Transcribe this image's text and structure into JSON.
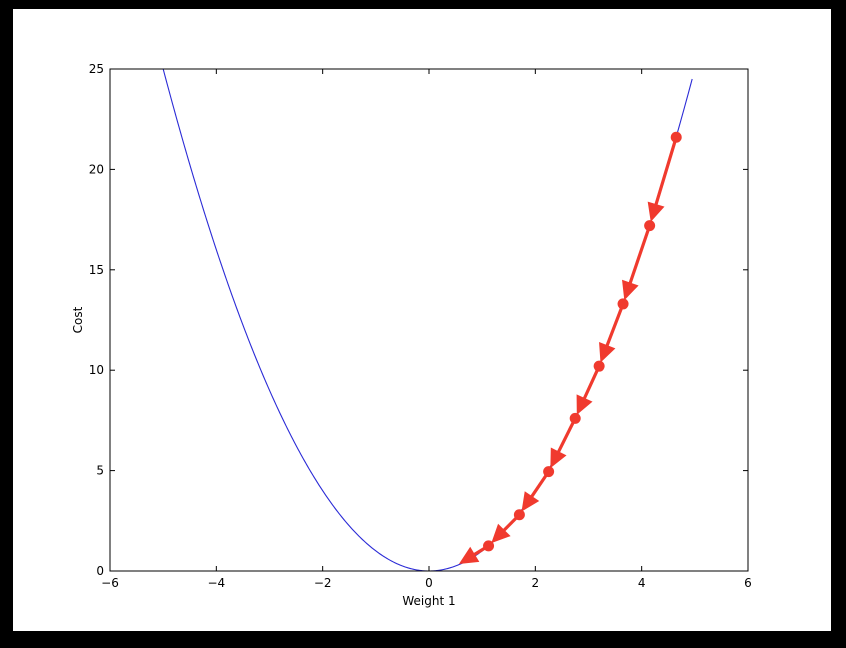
{
  "chart_data": {
    "type": "line",
    "title": "",
    "xlabel": "Weight 1",
    "ylabel": "Cost",
    "xlim": [
      -6,
      6
    ],
    "ylim": [
      0,
      25
    ],
    "xticks": [
      -6,
      -4,
      -2,
      0,
      2,
      4,
      6
    ],
    "xtick_labels": [
      "−6",
      "−4",
      "−2",
      "0",
      "2",
      "4",
      "6"
    ],
    "yticks": [
      0,
      5,
      10,
      15,
      20,
      25
    ],
    "ytick_labels": [
      "0",
      "5",
      "10",
      "15",
      "20",
      "25"
    ],
    "grid": false,
    "curve": {
      "function": "x^2",
      "x_range": [
        -5,
        4.95
      ],
      "color": "#2b2bd6"
    },
    "descent_path": {
      "color": "#f03a2e",
      "points": [
        {
          "x": 4.65,
          "y": 21.6
        },
        {
          "x": 4.15,
          "y": 17.2
        },
        {
          "x": 3.65,
          "y": 13.3
        },
        {
          "x": 3.2,
          "y": 10.2
        },
        {
          "x": 2.75,
          "y": 7.6
        },
        {
          "x": 2.25,
          "y": 4.95
        },
        {
          "x": 1.7,
          "y": 2.8
        },
        {
          "x": 1.12,
          "y": 1.25
        },
        {
          "x": 0.5,
          "y": 0.25
        }
      ]
    }
  }
}
